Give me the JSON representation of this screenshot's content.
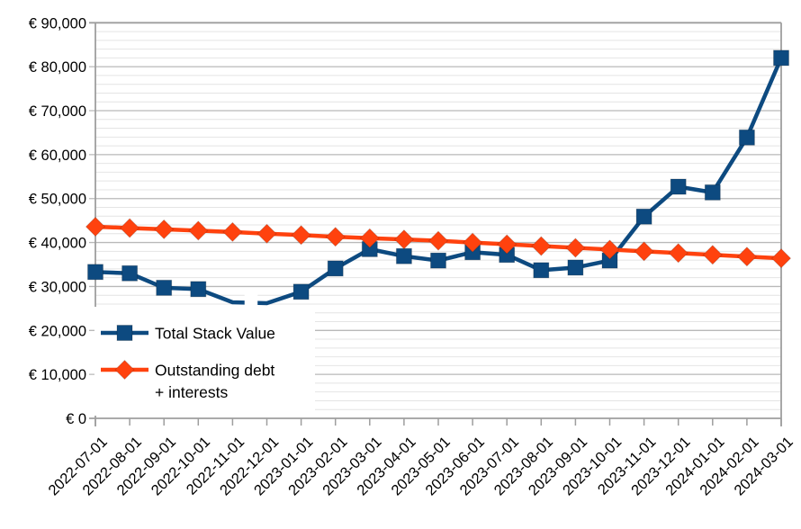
{
  "chart_data": {
    "type": "line",
    "title": "",
    "x_categories": [
      "2022-07-01",
      "2022-08-01",
      "2022-09-01",
      "2022-10-01",
      "2022-11-01",
      "2022-12-01",
      "2023-01-01",
      "2023-02-01",
      "2023-03-01",
      "2023-04-01",
      "2023-05-01",
      "2023-06-01",
      "2023-07-01",
      "2023-08-01",
      "2023-09-01",
      "2023-10-01",
      "2023-11-01",
      "2023-12-01",
      "2024-01-01",
      "2024-02-01",
      "2024-03-01"
    ],
    "series": [
      {
        "name": "Total Stack Value",
        "legend_lines": [
          "Total Stack Value"
        ],
        "color": "#0d4a80",
        "marker": "square",
        "values": [
          33300,
          33000,
          29700,
          29400,
          26400,
          26200,
          28800,
          34100,
          38500,
          36900,
          35900,
          37800,
          37200,
          33700,
          34300,
          35900,
          45900,
          52700,
          51400,
          63900,
          82000
        ],
        "markers_hidden_at": [
          "2022-11-01",
          "2022-12-01"
        ],
        "line_gap_between": [
          "2022-11-01",
          "2022-12-01"
        ]
      },
      {
        "name": "Outstanding debt + interests",
        "legend_lines": [
          "Outstanding debt",
          "+ interests"
        ],
        "color": "#ff420e",
        "marker": "diamond",
        "values": [
          43600,
          43300,
          43000,
          42700,
          42400,
          42000,
          41700,
          41300,
          41000,
          40700,
          40400,
          40000,
          39600,
          39200,
          38800,
          38400,
          38000,
          37600,
          37200,
          36800,
          36400
        ]
      }
    ],
    "y_tick_labels": [
      "€ 90,000",
      "€ 80,000",
      "€ 70,000",
      "€ 60,000",
      "€ 50,000",
      "€ 40,000",
      "€ 30,000",
      "€ 20,000",
      "€ 10,000",
      "€ 0"
    ],
    "ylim": [
      0,
      90000
    ],
    "y_major_step": 10000,
    "y_minor_step": 2000,
    "currency": "EUR",
    "grid": "major+minor",
    "legend_position": "inside-bottom-left",
    "x_label_rotation_deg": 45
  }
}
